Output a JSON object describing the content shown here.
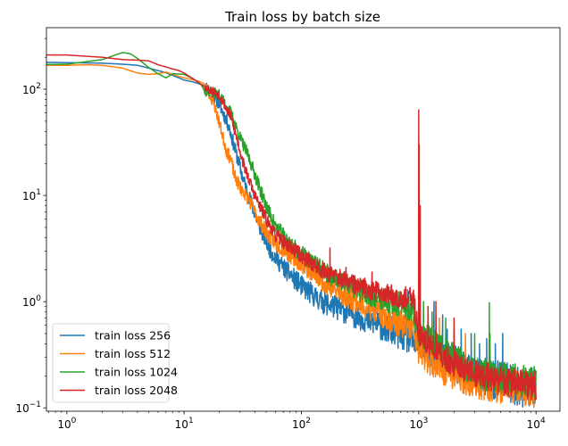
{
  "chart_data": {
    "type": "line",
    "title": "Train loss by batch size",
    "xlabel": "",
    "ylabel": "",
    "xscale": "log",
    "yscale": "log",
    "xlim": [
      0.67,
      16000
    ],
    "ylim": [
      0.093,
      380
    ],
    "grid": false,
    "legend_position": "lower-left",
    "x_ticks": [
      {
        "value": 1,
        "base": "10",
        "exp": "0"
      },
      {
        "value": 10,
        "base": "10",
        "exp": "1"
      },
      {
        "value": 100,
        "base": "10",
        "exp": "2"
      },
      {
        "value": 1000,
        "base": "10",
        "exp": "3"
      },
      {
        "value": 10000,
        "base": "10",
        "exp": "4"
      }
    ],
    "y_ticks": [
      {
        "value": 0.1,
        "base": "10",
        "exp": "−1"
      },
      {
        "value": 1,
        "base": "10",
        "exp": "0"
      },
      {
        "value": 10,
        "base": "10",
        "exp": "1"
      },
      {
        "value": 100,
        "base": "10",
        "exp": "2"
      }
    ],
    "series": [
      {
        "name": "train loss 256",
        "color": "#1f77b4",
        "noise": 0.055,
        "seed": 11,
        "points": [
          [
            0.5,
            180
          ],
          [
            1,
            178
          ],
          [
            2,
            176
          ],
          [
            3,
            172
          ],
          [
            4,
            168
          ],
          [
            5,
            158
          ],
          [
            7,
            143
          ],
          [
            9,
            128
          ],
          [
            10,
            122
          ],
          [
            12,
            117
          ],
          [
            15,
            108
          ],
          [
            17,
            95
          ],
          [
            20,
            72
          ],
          [
            24,
            45
          ],
          [
            28,
            24
          ],
          [
            32,
            14
          ],
          [
            38,
            8
          ],
          [
            45,
            4.8
          ],
          [
            55,
            3.0
          ],
          [
            70,
            2.1
          ],
          [
            100,
            1.4
          ],
          [
            150,
            1.0
          ],
          [
            200,
            0.88
          ],
          [
            300,
            0.74
          ],
          [
            500,
            0.58
          ],
          [
            700,
            0.49
          ],
          [
            1000,
            0.4
          ],
          [
            1500,
            0.31
          ],
          [
            2000,
            0.26
          ],
          [
            3000,
            0.21
          ],
          [
            5000,
            0.18
          ],
          [
            7000,
            0.16
          ],
          [
            10000,
            0.155
          ]
        ],
        "spikes": [
          [
            800,
            1.3
          ],
          [
            1350,
            1.0
          ],
          [
            1600,
            0.75
          ],
          [
            1750,
            0.55
          ],
          [
            2300,
            0.55
          ],
          [
            2800,
            0.5
          ],
          [
            3300,
            0.4
          ],
          [
            3800,
            0.45
          ],
          [
            4500,
            0.4
          ],
          [
            5200,
            0.5
          ]
        ]
      },
      {
        "name": "train loss 512",
        "color": "#ff7f0e",
        "noise": 0.05,
        "seed": 23,
        "points": [
          [
            0.5,
            168
          ],
          [
            1,
            168
          ],
          [
            1.5,
            170
          ],
          [
            2,
            168
          ],
          [
            3,
            158
          ],
          [
            4,
            142
          ],
          [
            5,
            138
          ],
          [
            6,
            140
          ],
          [
            7,
            145
          ],
          [
            9,
            132
          ],
          [
            11,
            125
          ],
          [
            13,
            120
          ],
          [
            15,
            112
          ],
          [
            16,
            95
          ],
          [
            18,
            72
          ],
          [
            20,
            48
          ],
          [
            23,
            26
          ],
          [
            25,
            22
          ],
          [
            27,
            15
          ],
          [
            30,
            12
          ],
          [
            35,
            9.5
          ],
          [
            40,
            7
          ],
          [
            50,
            4.5
          ],
          [
            60,
            3.6
          ],
          [
            80,
            2.8
          ],
          [
            100,
            2.3
          ],
          [
            150,
            1.6
          ],
          [
            200,
            1.25
          ],
          [
            300,
            1.0
          ],
          [
            500,
            0.75
          ],
          [
            700,
            0.62
          ],
          [
            900,
            0.55
          ],
          [
            1000,
            0.35
          ],
          [
            1500,
            0.24
          ],
          [
            2000,
            0.21
          ],
          [
            3000,
            0.18
          ],
          [
            5000,
            0.165
          ],
          [
            10000,
            0.15
          ]
        ],
        "spikes": [
          [
            1200,
            0.9
          ],
          [
            1500,
            0.7
          ],
          [
            2000,
            0.55
          ],
          [
            2500,
            0.5
          ],
          [
            4000,
            0.4
          ]
        ]
      },
      {
        "name": "train loss 1024",
        "color": "#2ca02c",
        "noise": 0.045,
        "seed": 37,
        "points": [
          [
            0.5,
            170
          ],
          [
            1,
            172
          ],
          [
            2,
            190
          ],
          [
            3,
            222
          ],
          [
            3.5,
            215
          ],
          [
            4,
            195
          ],
          [
            5,
            160
          ],
          [
            6,
            140
          ],
          [
            7,
            128
          ],
          [
            8,
            140
          ],
          [
            10,
            138
          ],
          [
            12,
            125
          ],
          [
            14,
            110
          ],
          [
            15,
            95
          ],
          [
            17,
            95
          ],
          [
            20,
            88
          ],
          [
            25,
            60
          ],
          [
            30,
            35
          ],
          [
            35,
            24
          ],
          [
            40,
            16
          ],
          [
            45,
            11
          ],
          [
            50,
            8
          ],
          [
            60,
            5.2
          ],
          [
            80,
            3.5
          ],
          [
            100,
            2.8
          ],
          [
            150,
            2.0
          ],
          [
            200,
            1.6
          ],
          [
            300,
            1.3
          ],
          [
            500,
            1.05
          ],
          [
            700,
            0.95
          ],
          [
            900,
            0.85
          ],
          [
            1000,
            0.5
          ],
          [
            1500,
            0.38
          ],
          [
            2000,
            0.3
          ],
          [
            2500,
            0.25
          ],
          [
            3000,
            0.22
          ],
          [
            5000,
            0.19
          ],
          [
            10000,
            0.17
          ]
        ],
        "spikes": [
          [
            1100,
            1.0
          ],
          [
            1300,
            0.8
          ],
          [
            1700,
            0.7
          ],
          [
            2000,
            0.55
          ],
          [
            3000,
            0.5
          ],
          [
            4000,
            0.98
          ],
          [
            4050,
            0.5
          ]
        ]
      },
      {
        "name": "train loss 2048",
        "color": "#d62728",
        "noise": 0.04,
        "seed": 53,
        "points": [
          [
            0.5,
            210
          ],
          [
            1,
            210
          ],
          [
            2,
            200
          ],
          [
            3,
            190
          ],
          [
            4,
            188
          ],
          [
            5,
            185
          ],
          [
            6,
            170
          ],
          [
            7,
            162
          ],
          [
            8,
            155
          ],
          [
            9,
            150
          ],
          [
            10,
            142
          ],
          [
            12,
            125
          ],
          [
            15,
            105
          ],
          [
            17,
            98
          ],
          [
            20,
            88
          ],
          [
            25,
            55
          ],
          [
            28,
            35
          ],
          [
            32,
            20
          ],
          [
            35,
            15
          ],
          [
            40,
            10
          ],
          [
            50,
            6
          ],
          [
            60,
            4.2
          ],
          [
            80,
            3.3
          ],
          [
            100,
            2.7
          ],
          [
            150,
            2.0
          ],
          [
            200,
            1.7
          ],
          [
            300,
            1.4
          ],
          [
            500,
            1.2
          ],
          [
            700,
            1.1
          ],
          [
            900,
            1.05
          ],
          [
            1000,
            0.5
          ],
          [
            1500,
            0.32
          ],
          [
            2000,
            0.26
          ],
          [
            3000,
            0.21
          ],
          [
            5000,
            0.18
          ],
          [
            10000,
            0.16
          ]
        ],
        "spikes": [
          [
            175,
            3.2
          ],
          [
            240,
            2.1
          ],
          [
            400,
            1.9
          ],
          [
            1000,
            64
          ],
          [
            1010,
            30
          ],
          [
            1030,
            8
          ],
          [
            1200,
            0.9
          ],
          [
            1400,
            1.0
          ],
          [
            2000,
            0.7
          ]
        ]
      }
    ]
  }
}
